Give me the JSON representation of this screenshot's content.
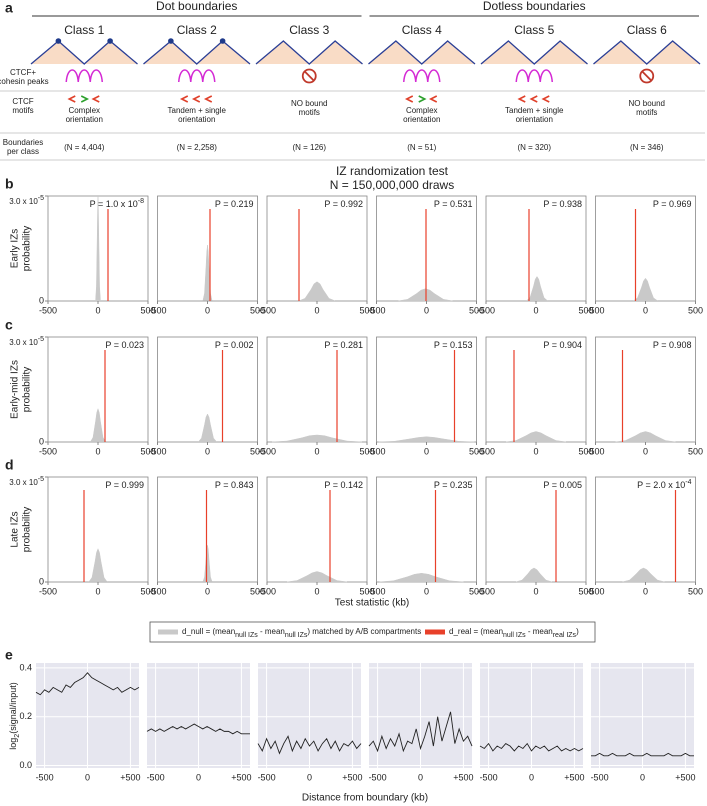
{
  "a": {
    "label": "a",
    "groups": [
      "Dot boundaries",
      "Dotless boundaries"
    ],
    "row_labels": [
      [
        "CTCF+",
        "cohesin peaks"
      ],
      [
        "CTCF",
        "motifs"
      ],
      [
        "Boundaries",
        "per class"
      ]
    ],
    "classes": [
      {
        "name": "Class 1",
        "dots": true,
        "peaks": true,
        "motifs": "complex",
        "motif_text": [
          "Complex",
          "orientation"
        ],
        "n": "(N = 4,404)"
      },
      {
        "name": "Class 2",
        "dots": true,
        "peaks": true,
        "motifs": "tandem",
        "motif_text": [
          "Tandem + single",
          "orientation"
        ],
        "n": "(N = 2,258)"
      },
      {
        "name": "Class 3",
        "dots": false,
        "peaks": false,
        "motifs": "none",
        "motif_text": [
          "NO bound",
          "motifs"
        ],
        "n": "(N = 126)"
      },
      {
        "name": "Class 4",
        "dots": false,
        "peaks": true,
        "motifs": "complex",
        "motif_text": [
          "Complex",
          "orientation"
        ],
        "n": "(N = 51)"
      },
      {
        "name": "Class 5",
        "dots": false,
        "peaks": true,
        "motifs": "tandem",
        "motif_text": [
          "Tandem + single",
          "orientation"
        ],
        "n": "(N = 320)"
      },
      {
        "name": "Class 6",
        "dots": false,
        "peaks": false,
        "motifs": "none",
        "motif_text": [
          "NO bound",
          "motifs"
        ],
        "n": "(N = 346)"
      }
    ]
  },
  "randomization": {
    "title": "IZ randomization test",
    "subtitle": "N = 150,000,000 draws",
    "xlabel": "Test statistic (kb)",
    "xlim": [
      -500,
      500
    ],
    "xticks": [
      -500,
      0,
      500
    ],
    "ylim": [
      0,
      3e-05
    ],
    "yticks": [
      0,
      {
        "value": 3e-05,
        "label": "3.0 x 10",
        "sup": "-5"
      }
    ],
    "null_color": "#c9c9c9",
    "real_color": "#e8402a",
    "legend": {
      "null": [
        "d_null = (mean",
        "null IZs",
        " - mean",
        "null IZs",
        ") matched by A/B compartments"
      ],
      "real": [
        "d_real = (mean",
        "null IZs",
        " - mean",
        "real IZs",
        ")"
      ]
    },
    "rows": [
      {
        "label": "b",
        "ylabel": [
          "Early IZs",
          "probability"
        ],
        "plots": [
          {
            "p_label": {
              "text": "P = 1.0 x 10",
              "sup": "-8"
            },
            "d_real": 100,
            "null_x": [
              -24,
              -16,
              -8,
              -4,
              0,
              4,
              8,
              16,
              24
            ],
            "null_values": [
              3.3e-07,
              4.1e-06,
              1.8e-05,
              2.6e-05,
              3e-05,
              2.6e-05,
              1.8e-05,
              4.1e-06,
              3.3e-07
            ]
          },
          {
            "p_label": {
              "text": "P = 0.219"
            },
            "d_real": 25,
            "null_x": [
              -45,
              -30,
              -15,
              -7.5,
              0,
              7.5,
              15,
              30,
              45
            ],
            "null_values": [
              1.8e-07,
              2.2e-06,
              9.7e-06,
              1.4e-05,
              1.6e-05,
              1.4e-05,
              9.7e-06,
              2.2e-06,
              1.8e-07
            ]
          },
          {
            "p_label": {
              "text": "P = 0.992"
            },
            "d_real": -180,
            "null_x": [
              -180,
              -120,
              -60,
              -30,
              0,
              30,
              60,
              120,
              180
            ],
            "null_values": [
              6e-08,
              7.4e-07,
              3.3e-06,
              4.9e-06,
              5.5e-06,
              4.9e-06,
              3.3e-06,
              7.4e-07,
              6e-08
            ]
          },
          {
            "p_label": {
              "text": "P = 0.531"
            },
            "d_real": -5,
            "null_x": [
              -280,
              -190,
              -100,
              -55,
              -10,
              35,
              80,
              170,
              260
            ],
            "null_values": [
              4e-08,
              4.7e-07,
              2.1e-06,
              3.1e-06,
              3.5e-06,
              3.1e-06,
              2.1e-06,
              4.7e-07,
              4e-08
            ]
          },
          {
            "p_label": {
              "text": "P = 0.938"
            },
            "d_real": -70,
            "null_x": [
              -95,
              -60,
              -25,
              -7.5,
              10,
              27.5,
              45,
              80,
              115
            ],
            "null_values": [
              8e-08,
              9.5e-07,
              4.2e-06,
              6.2e-06,
              7e-06,
              6.2e-06,
              4.2e-06,
              9.5e-07,
              8e-08
            ]
          },
          {
            "p_label": {
              "text": "P = 0.969"
            },
            "d_real": -100,
            "null_x": [
              -120,
              -80,
              -40,
              -20,
              0,
              20,
              40,
              80,
              120
            ],
            "null_values": [
              7e-08,
              8.8e-07,
              3.9e-06,
              5.7e-06,
              6.5e-06,
              5.7e-06,
              3.9e-06,
              8.8e-07,
              7e-08
            ]
          }
        ]
      },
      {
        "label": "c",
        "ylabel": [
          "Early-mid IZs",
          "probability"
        ],
        "plots": [
          {
            "p_label": {
              "text": "P = 0.023"
            },
            "d_real": 70,
            "null_x": [
              -75,
              -50,
              -25,
              -12.5,
              0,
              12.5,
              25,
              50,
              75
            ],
            "null_values": [
              1e-07,
              1.3e-06,
              5.8e-06,
              8.4e-06,
              9.5e-06,
              8.4e-06,
              5.8e-06,
              1.3e-06,
              1e-07
            ]
          },
          {
            "p_label": {
              "text": "P = 0.002"
            },
            "d_real": 150,
            "null_x": [
              -90,
              -60,
              -30,
              -15,
              0,
              15,
              30,
              60,
              90
            ],
            "null_values": [
              9e-08,
              1.1e-06,
              4.9e-06,
              7.1e-06,
              8e-06,
              7.1e-06,
              4.9e-06,
              1.1e-06,
              9e-08
            ]
          },
          {
            "p_label": {
              "text": "P = 0.281"
            },
            "d_real": 200,
            "null_x": [
              -450,
              -300,
              -150,
              -75,
              0,
              75,
              150,
              300,
              450
            ],
            "null_values": [
              2e-08,
              2.7e-07,
              1.2e-06,
              1.8e-06,
              2e-06,
              1.8e-06,
              1.2e-06,
              2.7e-07,
              2e-08
            ]
          },
          {
            "p_label": {
              "text": "P = 0.153"
            },
            "d_real": 280,
            "null_x": [
              -480,
              -320,
              -160,
              -80,
              0,
              80,
              160,
              320,
              480
            ],
            "null_values": [
              2e-08,
              2e-07,
              9.1e-07,
              1.3e-06,
              1.5e-06,
              1.3e-06,
              9.1e-07,
              2e-07,
              2e-08
            ]
          },
          {
            "p_label": {
              "text": "P = 0.904"
            },
            "d_real": -220,
            "null_x": [
              -300,
              -200,
              -100,
              -50,
              0,
              50,
              100,
              200,
              300
            ],
            "null_values": [
              3e-08,
              4.1e-07,
              1.8e-06,
              2.6e-06,
              3e-06,
              2.6e-06,
              1.8e-06,
              4.1e-07,
              3e-08
            ]
          },
          {
            "p_label": {
              "text": "P = 0.908"
            },
            "d_real": -230,
            "null_x": [
              -300,
              -200,
              -100,
              -50,
              0,
              50,
              100,
              200,
              300
            ],
            "null_values": [
              3e-08,
              4.1e-07,
              1.8e-06,
              2.6e-06,
              3e-06,
              2.6e-06,
              1.8e-06,
              4.1e-07,
              3e-08
            ]
          }
        ]
      },
      {
        "label": "d",
        "ylabel": [
          "Late IZs",
          "probability"
        ],
        "plots": [
          {
            "p_label": {
              "text": "P = 0.999"
            },
            "d_real": -140,
            "null_x": [
              -90,
              -60,
              -30,
              -15,
              0,
              15,
              30,
              60,
              90
            ],
            "null_values": [
              1e-07,
              1.3e-06,
              5.8e-06,
              8.4e-06,
              9.5e-06,
              8.4e-06,
              5.8e-06,
              1.3e-06,
              1e-07
            ]
          },
          {
            "p_label": {
              "text": "P = 0.843"
            },
            "d_real": -10,
            "null_x": [
              -45,
              -30,
              -15,
              -7.5,
              0,
              7.5,
              15,
              30,
              45
            ],
            "null_values": [
              1.2e-07,
              1.4e-06,
              6.4e-06,
              9.3e-06,
              1.05e-05,
              9.3e-06,
              6.4e-06,
              1.4e-06,
              1.2e-07
            ]
          },
          {
            "p_label": {
              "text": "P = 0.142"
            },
            "d_real": 130,
            "null_x": [
              -300,
              -200,
              -100,
              -50,
              0,
              50,
              100,
              200,
              300
            ],
            "null_values": [
              3e-08,
              4.1e-07,
              1.8e-06,
              2.6e-06,
              3e-06,
              2.6e-06,
              1.8e-06,
              4.1e-07,
              3e-08
            ]
          },
          {
            "p_label": {
              "text": "P = 0.235"
            },
            "d_real": 90,
            "null_x": [
              -470,
              -330,
              -190,
              -120,
              -50,
              20,
              90,
              230,
              370
            ],
            "null_values": [
              3e-08,
              3.4e-07,
              1.5e-06,
              2.2e-06,
              2.5e-06,
              2.2e-06,
              1.5e-06,
              3.4e-07,
              3e-08
            ]
          },
          {
            "p_label": {
              "text": "P = 0.005"
            },
            "d_real": 200,
            "null_x": [
              -200,
              -140,
              -80,
              -50,
              -20,
              10,
              40,
              100,
              160
            ],
            "null_values": [
              4e-08,
              5.4e-07,
              2.4e-06,
              3.5e-06,
              4e-06,
              3.5e-06,
              2.4e-06,
              5.4e-07,
              4e-08
            ]
          },
          {
            "p_label": {
              "text": "P = 2.0 x 10",
              "sup": "-4"
            },
            "d_real": 300,
            "null_x": [
              -230,
              -160,
              -90,
              -55,
              -20,
              15,
              50,
              120,
              190
            ],
            "null_values": [
              4e-08,
              5.4e-07,
              2.4e-06,
              3.5e-06,
              4e-06,
              3.5e-06,
              2.4e-06,
              5.4e-07,
              4e-08
            ]
          }
        ]
      }
    ]
  },
  "e": {
    "label": "e",
    "ylabel": [
      "log",
      "2",
      "(signal/input)"
    ],
    "xlabel": "Distance from boundary (kb)",
    "xlim": [
      -600,
      600
    ],
    "xticks": [
      -500,
      0,
      {
        "value": 500,
        "label": "+500"
      }
    ],
    "ylim": [
      -0.01,
      0.42
    ],
    "yticks": [
      {
        "value": 0,
        "label": "0.0"
      },
      0.2,
      0.4
    ],
    "color": "#222222",
    "background": "#e6e6ef",
    "grid": true,
    "x": [
      -600,
      -550,
      -500,
      -450,
      -400,
      -350,
      -300,
      -250,
      -200,
      -150,
      -100,
      -50,
      0,
      50,
      100,
      150,
      200,
      250,
      300,
      350,
      400,
      450,
      500,
      550,
      600
    ],
    "plots": [
      {
        "values": [
          0.3,
          0.29,
          0.31,
          0.3,
          0.32,
          0.31,
          0.3,
          0.33,
          0.32,
          0.34,
          0.35,
          0.36,
          0.38,
          0.36,
          0.35,
          0.34,
          0.33,
          0.32,
          0.31,
          0.32,
          0.3,
          0.31,
          0.32,
          0.31,
          0.32
        ]
      },
      {
        "values": [
          0.14,
          0.15,
          0.14,
          0.15,
          0.14,
          0.15,
          0.16,
          0.15,
          0.16,
          0.15,
          0.16,
          0.17,
          0.16,
          0.15,
          0.16,
          0.15,
          0.14,
          0.15,
          0.14,
          0.14,
          0.13,
          0.14,
          0.13,
          0.13,
          0.13
        ]
      },
      {
        "values": [
          0.09,
          0.06,
          0.11,
          0.07,
          0.1,
          0.05,
          0.09,
          0.12,
          0.06,
          0.1,
          0.07,
          0.11,
          0.08,
          0.1,
          0.06,
          0.09,
          0.11,
          0.07,
          0.1,
          0.06,
          0.09,
          0.08,
          0.1,
          0.07,
          0.09
        ]
      },
      {
        "values": [
          0.08,
          0.1,
          0.06,
          0.12,
          0.07,
          0.11,
          0.08,
          0.13,
          0.06,
          0.1,
          0.09,
          0.15,
          0.07,
          0.12,
          0.18,
          0.08,
          0.2,
          0.1,
          0.16,
          0.22,
          0.09,
          0.15,
          0.1,
          0.12,
          0.08
        ]
      },
      {
        "values": [
          0.08,
          0.07,
          0.09,
          0.06,
          0.08,
          0.07,
          0.09,
          0.08,
          0.06,
          0.08,
          0.07,
          0.09,
          0.06,
          0.08,
          0.07,
          0.08,
          0.06,
          0.07,
          0.08,
          0.06,
          0.07,
          0.06,
          0.07,
          0.06,
          0.07
        ]
      },
      {
        "values": [
          0.04,
          0.04,
          0.05,
          0.04,
          0.04,
          0.05,
          0.04,
          0.04,
          0.04,
          0.05,
          0.04,
          0.04,
          0.04,
          0.05,
          0.04,
          0.04,
          0.04,
          0.04,
          0.05,
          0.04,
          0.04,
          0.04,
          0.05,
          0.04,
          0.04
        ]
      }
    ]
  }
}
